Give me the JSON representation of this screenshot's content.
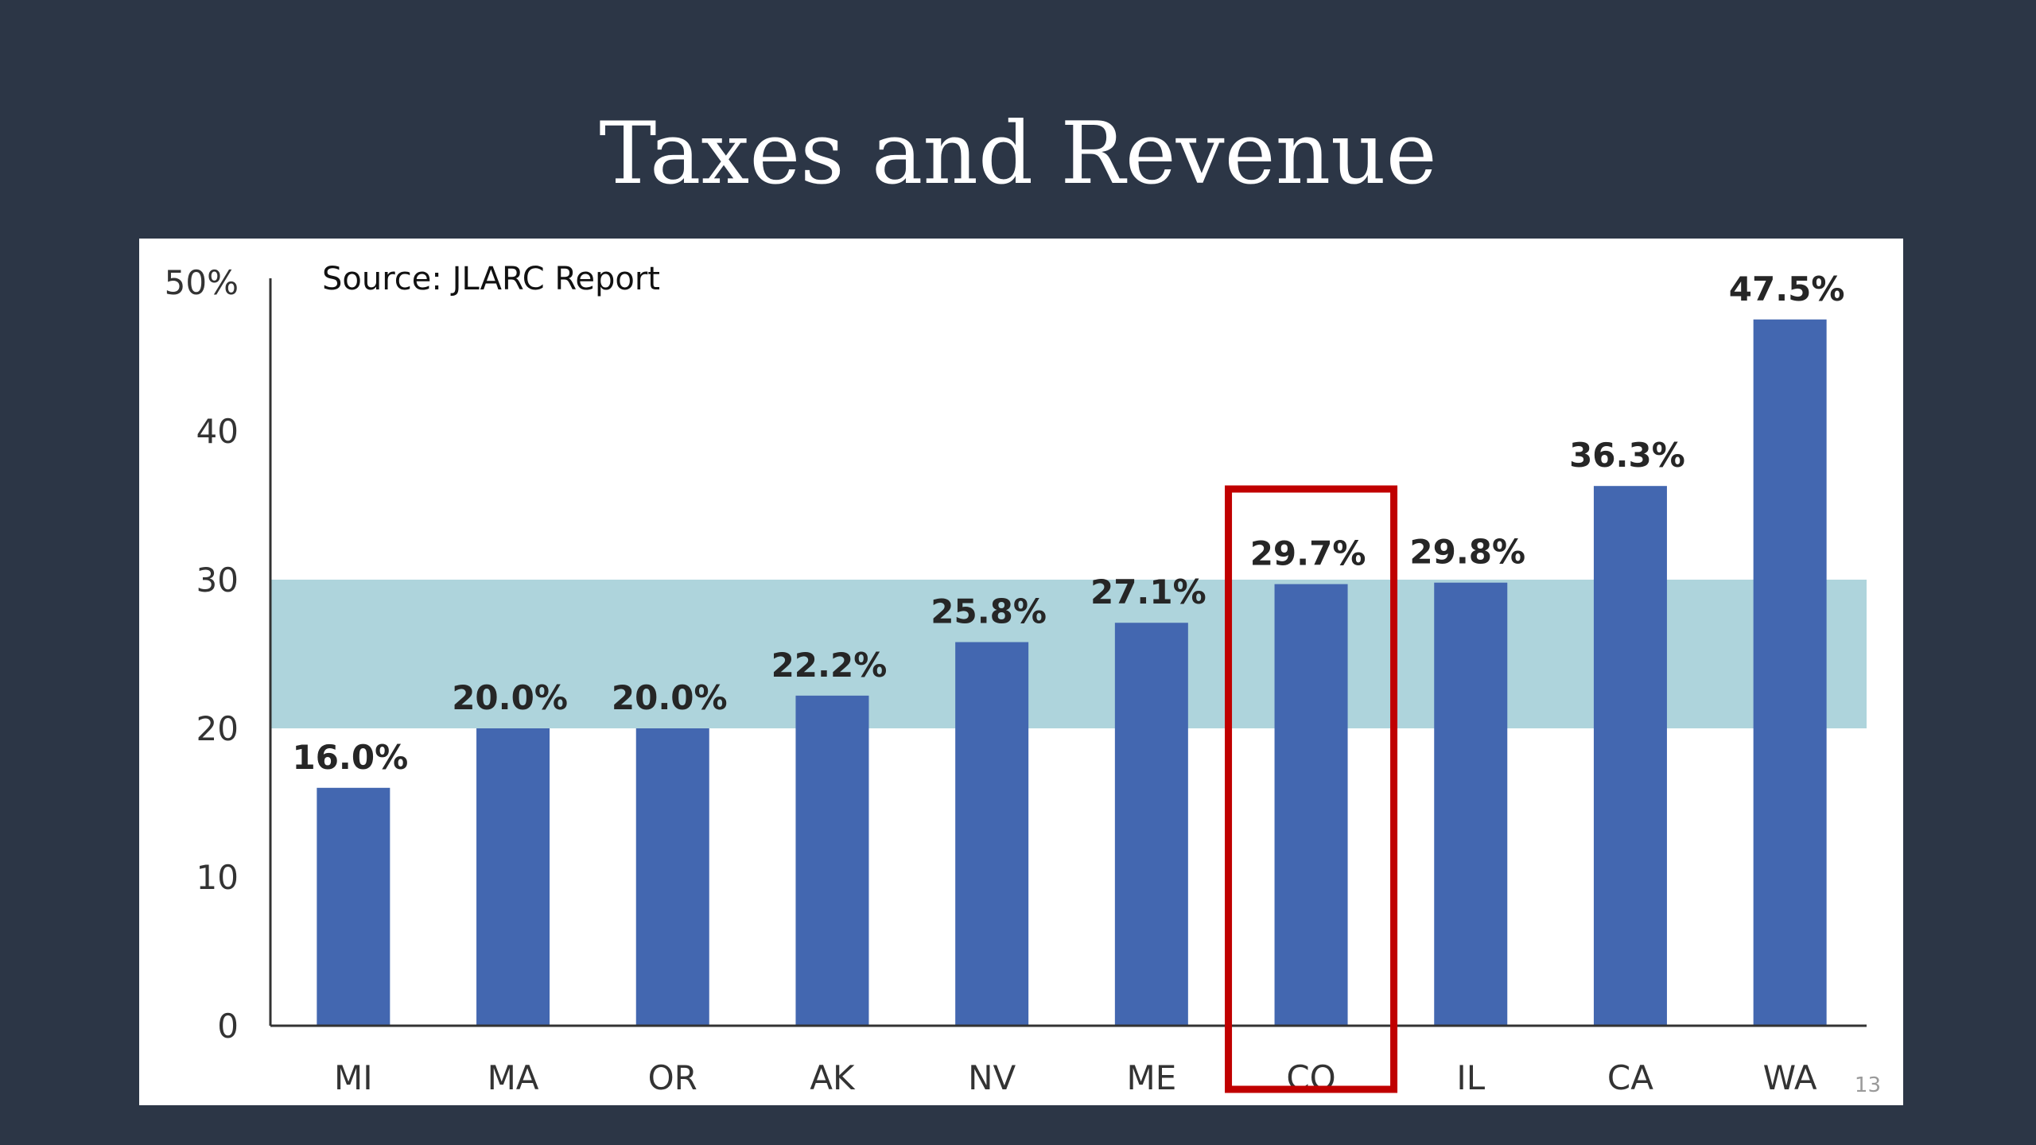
{
  "slide": {
    "title": "Taxes and Revenue",
    "page_number": "13"
  },
  "colors": {
    "background": "#2c3646",
    "bar": "#4367b0",
    "band": "#aed4dc",
    "highlight": "#c00000"
  },
  "chart_data": {
    "type": "bar",
    "source_note": "Source: JLARC Report",
    "categories": [
      "MI",
      "MA",
      "OR",
      "AK",
      "NV",
      "ME",
      "CO",
      "IL",
      "CA",
      "WA"
    ],
    "values": [
      16.0,
      20.0,
      20.0,
      22.2,
      25.8,
      27.1,
      29.7,
      29.8,
      36.3,
      47.5
    ],
    "data_labels": [
      "16.0%",
      "20.0%",
      "20.0%",
      "22.2%",
      "25.8%",
      "27.1%",
      "29.7%",
      "29.8%",
      "36.3%",
      "47.5%"
    ],
    "ylim": [
      0,
      50
    ],
    "yticks": [
      {
        "value": 0,
        "label": "0"
      },
      {
        "value": 10,
        "label": "10"
      },
      {
        "value": 20,
        "label": "20"
      },
      {
        "value": 30,
        "label": "30"
      },
      {
        "value": 40,
        "label": "40"
      },
      {
        "value": 50,
        "label": "50%"
      }
    ],
    "shaded_band": [
      20,
      30
    ],
    "highlighted_category": "CO",
    "grid": false,
    "legend": "none"
  }
}
